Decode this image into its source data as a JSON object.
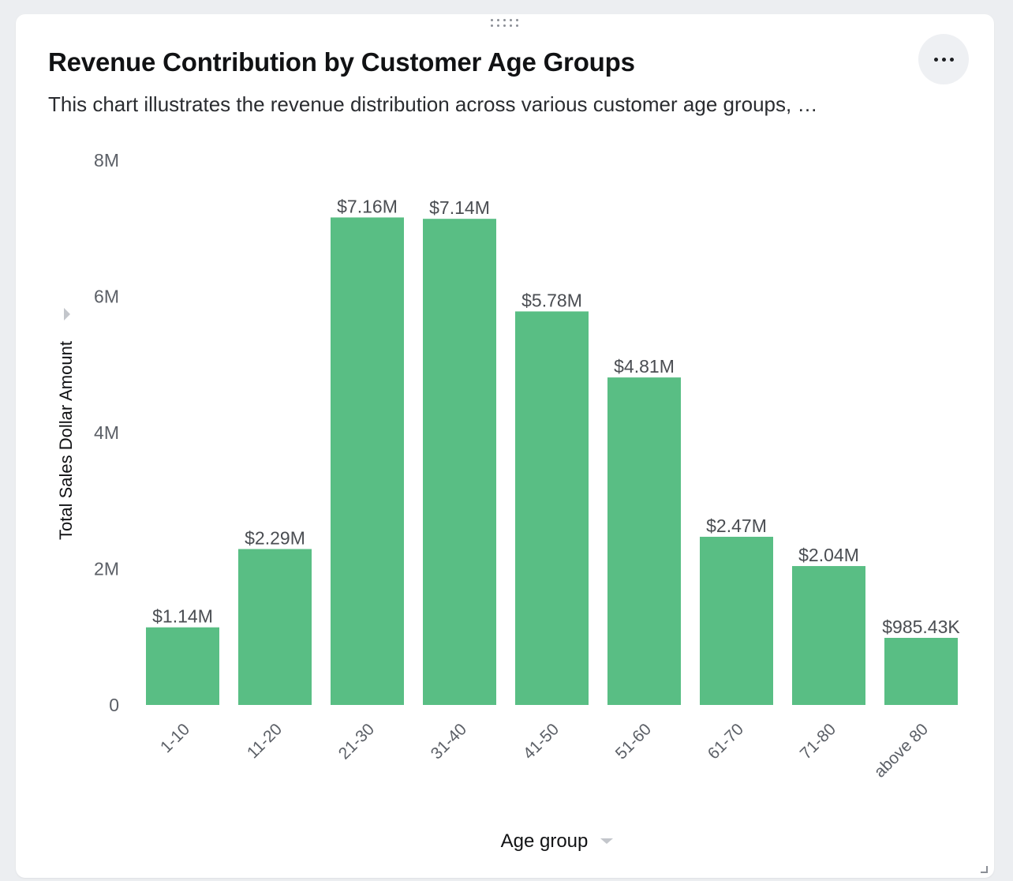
{
  "card": {
    "title": "Revenue Contribution by Customer Age Groups",
    "subtitle": "This chart illustrates the revenue distribution across various customer age groups, …",
    "menu_icon": "more-horizontal-icon",
    "drag_icon": "drag-handle-icon",
    "resize_icon": "resize-corner-icon"
  },
  "colors": {
    "bar": "#59be84",
    "axis_text": "#5b5f66",
    "label_text": "#4a4d52",
    "title_text": "#111214"
  },
  "chart_data": {
    "type": "bar",
    "categories": [
      "1-10",
      "11-20",
      "21-30",
      "31-40",
      "41-50",
      "51-60",
      "61-70",
      "71-80",
      "above 80"
    ],
    "series": [
      {
        "values": [
          1140000,
          2290000,
          7160000,
          7140000,
          5780000,
          4810000,
          2470000,
          2040000,
          985430
        ],
        "data_labels": [
          "$1.14M",
          "$2.29M",
          "$7.16M",
          "$7.14M",
          "$5.78M",
          "$4.81M",
          "$2.47M",
          "$2.04M",
          "$985.43K"
        ]
      }
    ],
    "xlabel": "Age group",
    "ylabel": "Total Sales Dollar Amount",
    "ylim": [
      0,
      8000000
    ],
    "yticks": [
      0,
      2000000,
      4000000,
      6000000,
      8000000
    ],
    "ytick_labels": [
      "0",
      "2M",
      "4M",
      "6M",
      "8M"
    ],
    "grid": false,
    "legend": "none"
  }
}
